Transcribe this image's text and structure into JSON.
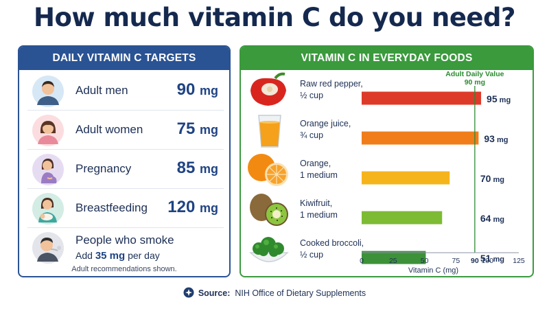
{
  "title": "How much vitamin C do you need?",
  "targets": {
    "header": "DAILY VITAMIN C TARGETS",
    "rows": [
      {
        "label": "Adult men",
        "value": "90",
        "unit": "mg",
        "icon": "man-avatar-icon"
      },
      {
        "label": "Adult women",
        "value": "75",
        "unit": "mg",
        "icon": "woman-avatar-icon"
      },
      {
        "label": "Pregnancy",
        "value": "85",
        "unit": "mg",
        "icon": "pregnant-woman-icon"
      },
      {
        "label": "Breastfeeding",
        "value": "120",
        "unit": "mg",
        "icon": "breastfeeding-mother-icon"
      }
    ],
    "smokers": {
      "label": "People who smoke",
      "add_prefix": "Add",
      "add_value": "35 mg",
      "add_suffix": "per day",
      "icon": "smoking-person-icon"
    },
    "footnote": "Adult recommendations shown."
  },
  "foods": {
    "header": "VITAMIN C IN EVERYDAY FOODS",
    "items": [
      {
        "label_line1": "Raw red pepper,",
        "label_line2": "½ cup",
        "icon": "red-pepper-icon"
      },
      {
        "label_line1": "Orange juice,",
        "label_line2": "¾ cup",
        "icon": "orange-juice-icon"
      },
      {
        "label_line1": "Orange,",
        "label_line2": "1 medium",
        "icon": "orange-icon"
      },
      {
        "label_line1": "Kiwifruit,",
        "label_line2": "1 medium",
        "icon": "kiwifruit-icon"
      },
      {
        "label_line1": "Cooked broccoli,",
        "label_line2": "½ cup",
        "icon": "broccoli-icon"
      }
    ]
  },
  "chart_data": {
    "type": "bar",
    "orientation": "horizontal",
    "categories": [
      "Raw red pepper, ½ cup",
      "Orange juice, ¾ cup",
      "Orange, 1 medium",
      "Kiwifruit, 1 medium",
      "Cooked broccoli, ½ cup"
    ],
    "values": [
      95,
      93,
      70,
      64,
      51
    ],
    "value_labels": [
      "95",
      "93",
      "70",
      "64",
      "51"
    ],
    "value_unit": "mg",
    "colors": [
      "#de3a2a",
      "#f07d1a",
      "#f6b41c",
      "#7dbb34",
      "#3d9138"
    ],
    "xlabel": "Vitamin C (mg)",
    "xlim": [
      0,
      125
    ],
    "xticks": [
      "0",
      "25",
      "50",
      "75",
      "90",
      "100",
      "125"
    ],
    "reference_line": {
      "value": 90,
      "label_line1": "Adult Daily Value",
      "label_line2": "90 mg",
      "color": "#2c8a31"
    }
  },
  "source": {
    "label": "Source:",
    "text": "NIH Office of Dietary Supplements",
    "icon": "nih-seal-icon"
  }
}
